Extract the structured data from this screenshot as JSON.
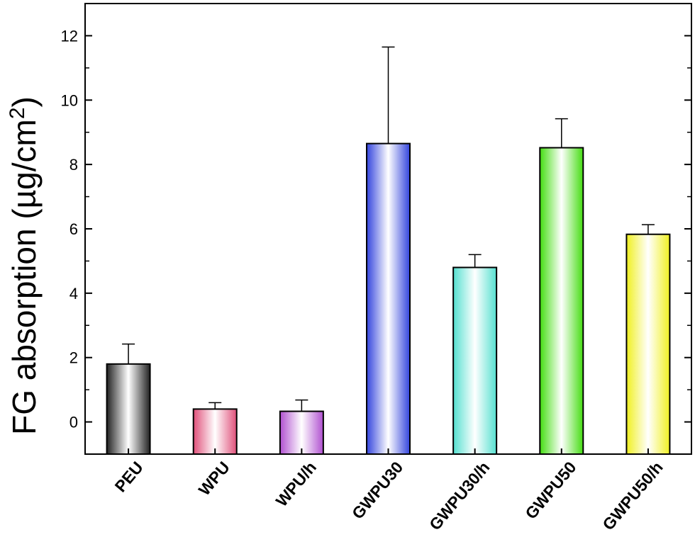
{
  "chart_data": {
    "type": "bar",
    "title": "",
    "xlabel": "",
    "ylabel": "FG absorption (µg/cm",
    "ylabel_superscript": "2",
    "ylabel_close": ")",
    "ylim": [
      -1,
      13
    ],
    "yticks": [
      0,
      2,
      4,
      6,
      8,
      10,
      12
    ],
    "ytick_labels": [
      "0",
      "2",
      "4",
      "6",
      "8",
      "10",
      "12"
    ],
    "grid": false,
    "categories": [
      "PEU",
      "WPU",
      "WPU/h",
      "GWPU30",
      "GWPU30/h",
      "GWPU50",
      "GWPU50/h"
    ],
    "values": [
      1.8,
      0.4,
      0.33,
      8.65,
      4.8,
      8.52,
      5.83
    ],
    "errors": [
      0.62,
      0.2,
      0.35,
      3.0,
      0.4,
      0.9,
      0.3
    ],
    "colors": [
      "#222222",
      "#e0507a",
      "#b050d0",
      "#3344dd",
      "#55e0d0",
      "#44dd11",
      "#f0f020"
    ]
  }
}
